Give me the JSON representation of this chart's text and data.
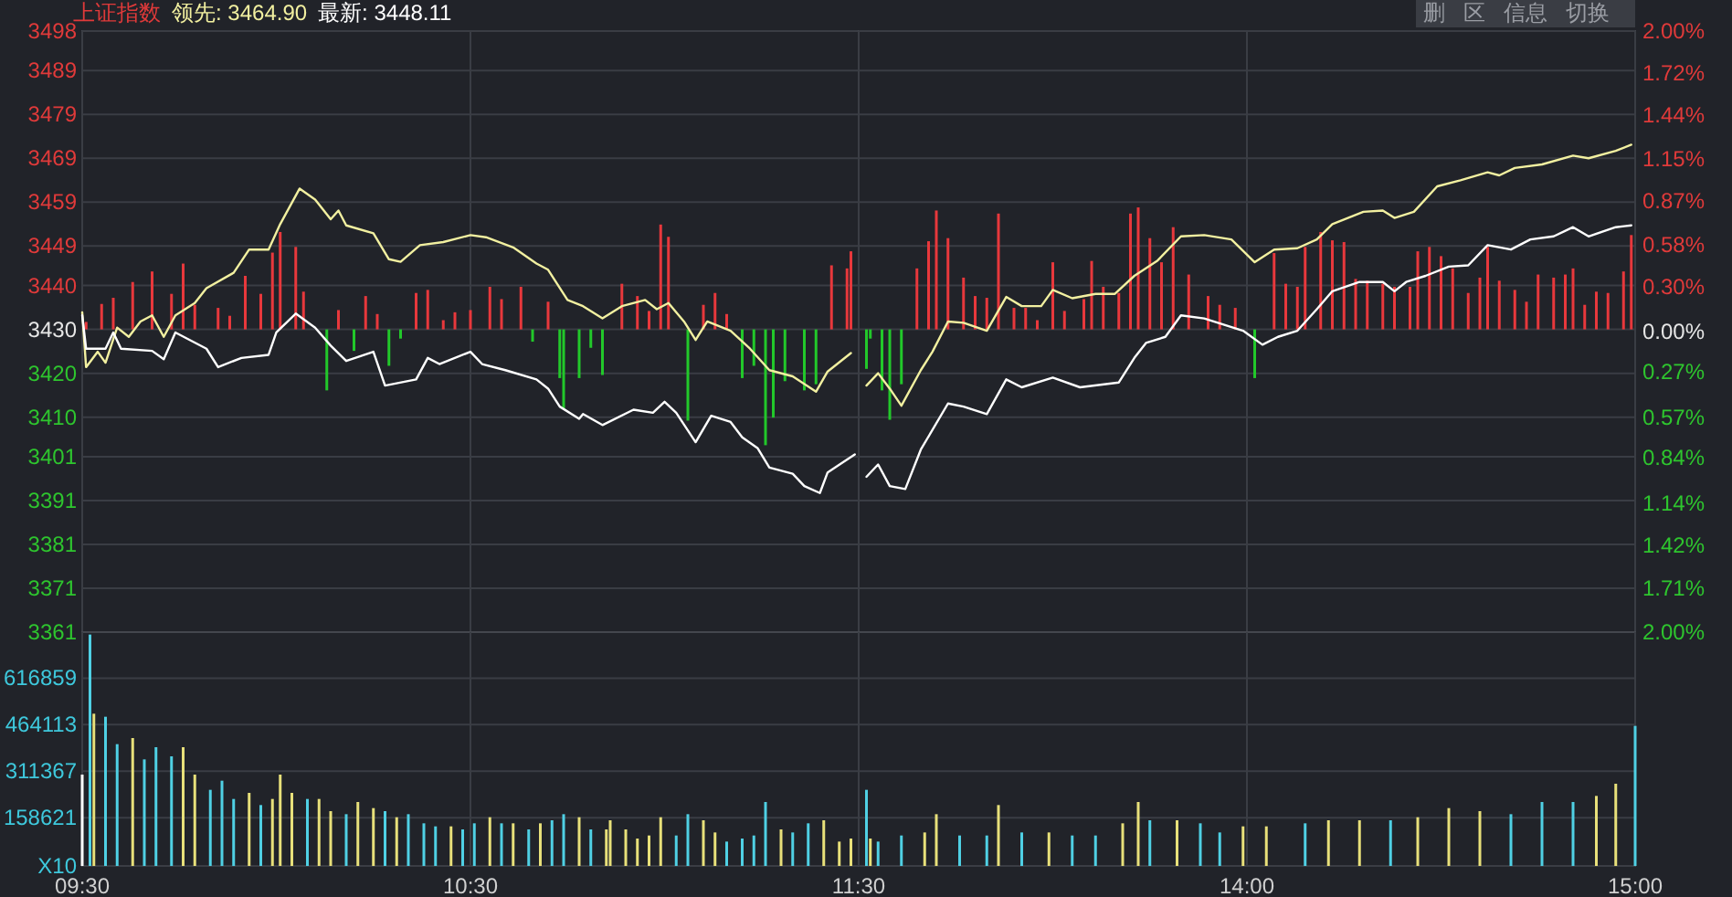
{
  "chart_data": [
    {
      "type": "line",
      "title": "上证指数",
      "annotations": [
        "领先: 3464.90",
        "最新: 3448.11",
        "删",
        "区",
        "信息",
        "切换"
      ],
      "xlim": [
        9.5,
        11.5
      ],
      "xticks": [
        {
          "value": 9.5,
          "label": null
        },
        {
          "value": 10.5,
          "label": null
        },
        {
          "value": 11.5,
          "label": null
        }
      ],
      "ylim": [
        3361,
        3498
      ],
      "yticks": [
        3498,
        3489,
        3479,
        3469,
        3459,
        3449,
        3440,
        3430,
        3420,
        3410,
        3401,
        3391,
        3381,
        3371,
        3361
      ],
      "grid": true,
      "tick_labels": "y",
      "series": [
        {
          "type": "bar",
          "color": "#e8383c",
          "x": [
            9.51,
            9.55,
            9.58,
            9.63,
            9.68,
            9.73,
            9.76,
            9.79,
            9.85,
            9.88,
            9.92,
            9.96,
            9.99,
            10.01,
            10.05,
            10.07,
            10.16,
            10.23,
            10.26,
            10.36,
            10.39,
            10.43,
            10.46,
            10.5,
            10.55,
            10.58,
            10.63,
            10.7,
            10.89,
            10.93,
            10.96,
            10.99,
            11.01,
            11.1,
            11.13,
            11.16,
            11.43,
            11.47,
            11.48
          ],
          "values": [
            1.7,
            5.8,
            7.2,
            10.8,
            13.2,
            8.1,
            15.0,
            5.6,
            4.9,
            3.1,
            12.2,
            8.1,
            17.5,
            22.2,
            18.8,
            8.6,
            4.4,
            7.6,
            3.5,
            8.3,
            9.0,
            2.1,
            3.9,
            4.4,
            9.7,
            6.9,
            9.7,
            6.3,
            10.4,
            7.6,
            4.2,
            23.9,
            21.1,
            5.6,
            8.3,
            3.5,
            14.6,
            13.9,
            17.8
          ],
          "base": [
            3430,
            3430,
            3430,
            3430,
            3430,
            3430,
            3430,
            3430,
            3430,
            3430,
            3430,
            3430,
            3430,
            3430,
            3430,
            3430,
            3430,
            3430,
            3430,
            3430,
            3430,
            3430,
            3430,
            3430,
            3430,
            3430,
            3430,
            3430,
            3430,
            3430,
            3430,
            3430,
            3430,
            3430,
            3430,
            3430,
            3430,
            3430,
            3430
          ]
        },
        {
          "type": "bar",
          "color": "#22c82a",
          "x": [
            10.13,
            10.2,
            10.29,
            10.32,
            10.66,
            10.73,
            10.74,
            10.78,
            10.81,
            10.84,
            11.06,
            11.2,
            11.23,
            11.26,
            11.28,
            11.31,
            11.36,
            11.39
          ],
          "values": [
            -13.9,
            -4.9,
            -8.3,
            -2.1,
            -2.8,
            -11.1,
            -18.1,
            -11.1,
            -4.2,
            -10.4,
            -20.8,
            -11.1,
            -8.3,
            -26.4,
            -20.1,
            -11.8,
            -13.9,
            -12.5
          ],
          "base": [
            3430,
            3430,
            3430,
            3430,
            3430,
            3430,
            3430,
            3430,
            3430,
            3430,
            3430,
            3430,
            3430,
            3430,
            3430,
            3430,
            3430,
            3430
          ]
        },
        {
          "color": "#f2f0a0",
          "x": [
            9.5,
            9.51,
            9.54,
            9.56,
            9.59,
            9.62,
            9.65,
            9.68,
            9.71,
            9.74,
            9.79,
            9.82,
            9.89,
            9.93,
            9.98,
            10.01,
            10.06,
            10.1,
            10.14,
            10.16,
            10.18,
            10.25,
            10.29,
            10.32,
            10.37,
            10.43,
            10.5,
            10.54,
            10.61,
            10.67,
            10.7,
            10.75,
            10.79,
            10.84,
            10.89,
            10.95,
            10.98,
            11.01,
            11.05,
            11.08,
            11.11,
            11.17,
            11.22,
            11.27,
            11.33,
            11.39,
            11.42,
            11.48
          ],
          "values": [
            3433.9,
            3421.4,
            3424.9,
            3422.4,
            3430.4,
            3428.3,
            3431.8,
            3433.2,
            3428.3,
            3433.2,
            3436.0,
            3439.4,
            3442.9,
            3448.2,
            3448.2,
            3454.0,
            3462.1,
            3459.6,
            3455.1,
            3457.1,
            3453.7,
            3451.9,
            3446.0,
            3445.4,
            3449.2,
            3449.9,
            3451.5,
            3451.0,
            3448.7,
            3445.0,
            3443.6,
            3436.7,
            3435.3,
            3432.5,
            3435.3,
            3436.7,
            3434.6,
            3436.0,
            3431.8,
            3427.6,
            3431.8,
            3429.7,
            3425.6,
            3420.7,
            3419.3,
            3415.8,
            3420.4,
            3424.6
          ]
        },
        {
          "color": "#ffffff",
          "x": [
            9.5,
            9.51,
            9.56,
            9.58,
            9.6,
            9.68,
            9.71,
            9.74,
            9.82,
            9.85,
            9.91,
            9.98,
            10.0,
            10.05,
            10.1,
            10.14,
            10.18,
            10.25,
            10.28,
            10.36,
            10.39,
            10.42,
            10.5,
            10.53,
            10.59,
            10.67,
            10.7,
            10.73,
            10.78,
            10.79,
            10.84,
            10.92,
            10.97,
            11.0,
            11.03,
            11.08,
            11.12,
            11.17,
            11.2,
            11.24,
            11.27,
            11.33,
            11.36,
            11.4,
            11.42,
            11.49
          ],
          "values": [
            3433.2,
            3425.6,
            3425.6,
            3429.3,
            3425.6,
            3425.1,
            3423.2,
            3429.3,
            3425.6,
            3421.4,
            3423.5,
            3424.2,
            3429.3,
            3433.6,
            3430.4,
            3426.3,
            3422.8,
            3424.9,
            3417.2,
            3418.6,
            3423.5,
            3422.1,
            3424.9,
            3422.1,
            3420.7,
            3418.6,
            3416.5,
            3412.4,
            3409.6,
            3410.7,
            3408.2,
            3411.7,
            3411.0,
            3413.5,
            3411.0,
            3404.3,
            3410.3,
            3408.9,
            3405.4,
            3402.9,
            3398.5,
            3397.1,
            3394.3,
            3392.7,
            3397.4,
            3401.5
          ]
        }
      ]
    },
    {
      "type": "line",
      "xlim": [
        13,
        15
      ],
      "xticks": [
        {
          "value": 13,
          "label": null
        },
        {
          "value": 14,
          "label": null
        },
        {
          "value": 15,
          "label": null
        }
      ],
      "ylim": [
        3361,
        3498
      ],
      "yticks": [
        3498,
        3489,
        3479,
        3469,
        3459,
        3449,
        3440,
        3430,
        3420,
        3410,
        3401,
        3391,
        3381,
        3371,
        3361
      ],
      "y2lim": [
        -2,
        2
      ],
      "y2ticks": [
        {
          "value": 2,
          "label": "2.00%"
        },
        {
          "value": 1.72,
          "label": "1.72%"
        },
        {
          "value": 1.44,
          "label": "1.44%"
        },
        {
          "value": 1.15,
          "label": "1.15%"
        },
        {
          "value": 0.87,
          "label": "0.87%"
        },
        {
          "value": 0.58,
          "label": "0.58%"
        },
        {
          "value": 0.3,
          "label": "0.30%"
        },
        {
          "value": 0,
          "label": "0.00%"
        },
        {
          "value": -0.27,
          "label": "0.27%"
        },
        {
          "value": -0.57,
          "label": "0.57%"
        },
        {
          "value": -0.84,
          "label": "0.84%"
        },
        {
          "value": -1.14,
          "label": "1.14%"
        },
        {
          "value": -1.42,
          "label": "1.42%"
        },
        {
          "value": -1.71,
          "label": "1.71%"
        },
        {
          "value": -2,
          "label": "2.00%"
        }
      ],
      "grid": true,
      "tick_labels": false,
      "series": [
        {
          "type": "bar",
          "color": "#e8383c",
          "x": [
            13.15,
            13.18,
            13.2,
            13.23,
            13.27,
            13.3,
            13.33,
            13.36,
            13.4,
            13.43,
            13.46,
            13.5,
            13.53,
            13.58,
            13.6,
            13.63,
            13.67,
            13.7,
            13.72,
            13.75,
            13.78,
            13.81,
            13.85,
            13.9,
            13.93,
            13.97,
            14.07,
            14.1,
            14.13,
            14.15,
            14.19,
            14.22,
            14.25,
            14.28,
            14.31,
            14.35,
            14.38,
            14.42,
            14.44,
            14.47,
            14.5,
            14.53,
            14.57,
            14.6,
            14.62,
            14.65,
            14.69,
            14.72,
            14.75,
            14.79,
            14.82,
            14.84,
            14.87,
            14.9,
            14.93,
            14.97,
            14.99
          ],
          "values": [
            13.9,
            20.1,
            27.1,
            20.8,
            11.8,
            7.6,
            7.2,
            26.4,
            4.9,
            4.9,
            2.1,
            15.3,
            4.2,
            6.9,
            15.6,
            9.7,
            8.3,
            26.4,
            27.8,
            20.8,
            15.3,
            23.3,
            12.5,
            7.6,
            5.6,
            4.9,
            17.4,
            10.4,
            9.7,
            18.8,
            22.2,
            20.3,
            19.9,
            11.5,
            11.1,
            10.4,
            9.7,
            9.7,
            17.8,
            18.8,
            16.7,
            13.9,
            8.3,
            11.8,
            18.8,
            11.1,
            9.0,
            6.3,
            12.5,
            11.8,
            12.5,
            13.9,
            5.6,
            8.6,
            8.3,
            13.2,
            21.5
          ],
          "base": [
            3430,
            3430,
            3430,
            3430,
            3430,
            3430,
            3430,
            3430,
            3430,
            3430,
            3430,
            3430,
            3430,
            3430,
            3430,
            3430,
            3430,
            3430,
            3430,
            3430,
            3430,
            3430,
            3430,
            3430,
            3430,
            3430,
            3430,
            3430,
            3430,
            3430,
            3430,
            3430,
            3430,
            3430,
            3430,
            3430,
            3430,
            3430,
            3430,
            3430,
            3430,
            3430,
            3430,
            3430,
            3430,
            3430,
            3430,
            3430,
            3430,
            3430,
            3430,
            3430,
            3430,
            3430,
            3430,
            3430,
            3430
          ]
        },
        {
          "type": "bar",
          "color": "#22c82a",
          "x": [
            13.02,
            13.03,
            13.06,
            13.08,
            13.11,
            14.02
          ],
          "values": [
            -9.0,
            -2.1,
            -13.9,
            -20.6,
            -12.5,
            -11.1
          ],
          "base": [
            3430,
            3430,
            3430,
            3430,
            3430,
            3430
          ]
        },
        {
          "color": "#f2f0a0",
          "x": [
            13.02,
            13.05,
            13.08,
            13.11,
            13.16,
            13.19,
            13.23,
            13.27,
            13.33,
            13.38,
            13.42,
            13.47,
            13.5,
            13.55,
            13.61,
            13.66,
            13.71,
            13.77,
            13.83,
            13.89,
            13.96,
            14.02,
            14.07,
            14.13,
            14.18,
            14.22,
            14.3,
            14.35,
            14.38,
            14.43,
            14.49,
            14.55,
            14.62,
            14.65,
            14.69,
            14.76,
            14.84,
            14.88,
            14.95,
            14.99
          ],
          "values": [
            3417.2,
            3420.0,
            3416.5,
            3412.6,
            3420.7,
            3424.9,
            3431.8,
            3431.5,
            3429.7,
            3437.4,
            3435.3,
            3435.3,
            3439.0,
            3437.1,
            3438.1,
            3438.1,
            3442.2,
            3445.7,
            3451.2,
            3451.5,
            3450.5,
            3445.3,
            3448.2,
            3448.5,
            3450.5,
            3454.0,
            3456.8,
            3457.1,
            3455.4,
            3456.8,
            3462.6,
            3464.0,
            3465.8,
            3465.1,
            3466.8,
            3467.6,
            3469.6,
            3469.0,
            3470.7,
            3472.1
          ]
        },
        {
          "color": "#ffffff",
          "x": [
            13.02,
            13.05,
            13.08,
            13.12,
            13.16,
            13.23,
            13.27,
            13.33,
            13.38,
            13.42,
            13.5,
            13.57,
            13.67,
            13.71,
            13.74,
            13.79,
            13.83,
            13.89,
            13.99,
            14.04,
            14.08,
            14.13,
            14.18,
            14.22,
            14.29,
            14.35,
            14.38,
            14.41,
            14.46,
            14.52,
            14.57,
            14.62,
            14.68,
            14.73,
            14.79,
            14.84,
            14.88,
            14.95,
            14.99
          ],
          "values": [
            3396.4,
            3399.2,
            3394.3,
            3393.6,
            3402.6,
            3413.1,
            3412.4,
            3410.7,
            3418.6,
            3416.8,
            3419.0,
            3416.8,
            3417.9,
            3423.5,
            3426.9,
            3428.3,
            3433.2,
            3432.5,
            3429.7,
            3426.5,
            3428.3,
            3429.7,
            3434.6,
            3438.7,
            3440.8,
            3440.8,
            3438.7,
            3440.8,
            3442.2,
            3444.3,
            3444.6,
            3449.2,
            3448.2,
            3450.5,
            3451.2,
            3453.3,
            3451.2,
            3453.3,
            3453.7
          ]
        }
      ]
    },
    {
      "type": "bar",
      "xlim": [
        9.5,
        11.5
      ],
      "xticks": [
        {
          "value": 9.5,
          "label": "09:30"
        },
        {
          "value": 10.5,
          "label": "10:30"
        },
        {
          "value": 11.5,
          "label": "11:30"
        }
      ],
      "ylim": [
        0,
        768000
      ],
      "yticks": [
        {
          "value": 0,
          "label": "X10"
        },
        158621,
        311367,
        464113,
        616859
      ],
      "grid": true,
      "x": [
        9.5,
        9.52,
        9.53,
        9.56,
        9.59,
        9.63,
        9.66,
        9.69,
        9.73,
        9.76,
        9.79,
        9.83,
        9.86,
        9.89,
        9.93,
        9.96,
        9.99,
        10.01,
        10.04,
        10.08,
        10.11,
        10.14,
        10.18,
        10.21,
        10.25,
        10.28,
        10.31,
        10.34,
        10.38,
        10.41,
        10.45,
        10.48,
        10.51,
        10.55,
        10.58,
        10.61,
        10.65,
        10.68,
        10.71,
        10.74,
        10.78,
        10.81,
        10.85,
        10.86,
        10.9,
        10.93,
        10.96,
        10.99,
        11.03,
        11.06,
        11.1,
        11.13,
        11.16,
        11.2,
        11.23,
        11.26,
        11.3,
        11.33,
        11.37,
        11.41,
        11.45,
        11.48
      ],
      "values": [
        300000,
        760000,
        500000,
        490000,
        400000,
        420000,
        350000,
        390000,
        360000,
        390000,
        300000,
        250000,
        280000,
        220000,
        240000,
        200000,
        220000,
        300000,
        240000,
        220000,
        220000,
        180000,
        170000,
        210000,
        190000,
        180000,
        160000,
        170000,
        140000,
        130000,
        130000,
        120000,
        140000,
        160000,
        140000,
        140000,
        120000,
        140000,
        150000,
        170000,
        160000,
        120000,
        120000,
        150000,
        120000,
        90000,
        100000,
        160000,
        100000,
        170000,
        150000,
        110000,
        80000,
        90000,
        100000,
        210000,
        120000,
        110000,
        140000,
        150000,
        80000,
        90000
      ],
      "colors": [
        "#ffffff",
        "#4fd0e4",
        "#e8e07a",
        "#4fd0e4",
        "#4fd0e4",
        "#e8e07a",
        "#4fd0e4",
        "#4fd0e4",
        "#4fd0e4",
        "#e8e07a",
        "#e8e07a",
        "#4fd0e4",
        "#4fd0e4",
        "#4fd0e4",
        "#e8e07a",
        "#4fd0e4",
        "#e8e07a",
        "#e8e07a",
        "#e8e07a",
        "#4fd0e4",
        "#e8e07a",
        "#e8e07a",
        "#4fd0e4",
        "#e8e07a",
        "#e8e07a",
        "#4fd0e4",
        "#e8e07a",
        "#4fd0e4",
        "#4fd0e4",
        "#4fd0e4",
        "#e8e07a",
        "#4fd0e4",
        "#4fd0e4",
        "#e8e07a",
        "#4fd0e4",
        "#e8e07a",
        "#4fd0e4",
        "#e8e07a",
        "#4fd0e4",
        "#4fd0e4",
        "#e8e07a",
        "#4fd0e4",
        "#e8e07a",
        "#e8e07a",
        "#e8e07a",
        "#e8e07a",
        "#e8e07a",
        "#e8e07a",
        "#4fd0e4",
        "#4fd0e4",
        "#e8e07a",
        "#e8e07a",
        "#4fd0e4",
        "#4fd0e4",
        "#4fd0e4",
        "#4fd0e4",
        "#e8e07a",
        "#4fd0e4",
        "#4fd0e4",
        "#e8e07a",
        "#e8e07a",
        "#e8e07a"
      ]
    },
    {
      "type": "bar",
      "xlim": [
        13,
        15
      ],
      "xticks": [
        {
          "value": 13,
          "label": null
        },
        {
          "value": 14,
          "label": "14:00"
        },
        {
          "value": 15,
          "label": "15:00"
        }
      ],
      "ylim": [
        0,
        768000
      ],
      "yticks": [
        0,
        158621,
        311367,
        464113,
        616859
      ],
      "grid": true,
      "tick_labels": "x",
      "x": [
        13.02,
        13.03,
        13.05,
        13.11,
        13.17,
        13.2,
        13.26,
        13.33,
        13.36,
        13.42,
        13.49,
        13.55,
        13.61,
        13.68,
        13.72,
        13.75,
        13.82,
        13.88,
        13.93,
        13.99,
        14.05,
        14.15,
        14.21,
        14.29,
        14.37,
        14.44,
        14.52,
        14.6,
        14.68,
        14.76,
        14.84,
        14.9,
        14.95,
        15.0
      ],
      "values": [
        250000,
        90000,
        80000,
        100000,
        110000,
        170000,
        100000,
        100000,
        200000,
        110000,
        110000,
        100000,
        100000,
        140000,
        210000,
        150000,
        150000,
        140000,
        110000,
        130000,
        130000,
        140000,
        150000,
        150000,
        150000,
        160000,
        190000,
        180000,
        170000,
        210000,
        210000,
        230000,
        270000,
        460000
      ],
      "colors": [
        "#4fd0e4",
        "#e8e07a",
        "#4fd0e4",
        "#4fd0e4",
        "#e8e07a",
        "#e8e07a",
        "#4fd0e4",
        "#4fd0e4",
        "#e8e07a",
        "#4fd0e4",
        "#e8e07a",
        "#4fd0e4",
        "#4fd0e4",
        "#e8e07a",
        "#e8e07a",
        "#4fd0e4",
        "#e8e07a",
        "#4fd0e4",
        "#4fd0e4",
        "#e8e07a",
        "#e8e07a",
        "#4fd0e4",
        "#e8e07a",
        "#e8e07a",
        "#4fd0e4",
        "#e8e07a",
        "#e8e07a",
        "#e8e07a",
        "#4fd0e4",
        "#4fd0e4",
        "#4fd0e4",
        "#e8e07a",
        "#e8e07a",
        "#4fd0e4"
      ]
    }
  ]
}
